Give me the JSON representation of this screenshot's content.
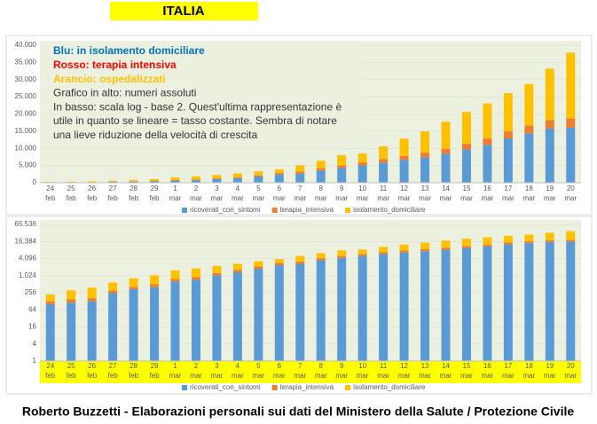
{
  "header": "ITALIA",
  "footer": "Roberto Buzzetti - Elaborazioni personali sui dati del Ministero della Salute / Protezione Civile",
  "chart_data": [
    {
      "type": "bar",
      "stacked": true,
      "log_scale": false,
      "grid": true,
      "annotations": [
        {
          "text": "Blu: in isolamento domiciliare",
          "color": "#0070c0",
          "bold": true
        },
        {
          "text": "Rosso: terapia intensiva",
          "color": "#ff0000",
          "bold": true
        },
        {
          "text": "Arancio: ospedalizzati",
          "color": "#ffc000",
          "bold": true
        },
        {
          "text": "Grafico in alto: numeri assoluti",
          "color": "#333333",
          "bold": false
        },
        {
          "text": "In basso: scala log - base 2. Quest'ultima rappresentazione è",
          "color": "#333333",
          "bold": false
        },
        {
          "text": "utile in quanto se lineare = tasso costante. Sembra di notare",
          "color": "#333333",
          "bold": false
        },
        {
          "text": "una lieve riduzione della velocità di crescita",
          "color": "#333333",
          "bold": false
        }
      ],
      "categories": [
        "24 feb",
        "25 feb",
        "26 feb",
        "27 feb",
        "28 feb",
        "29 feb",
        "1 mar",
        "2 mar",
        "3 mar",
        "4 mar",
        "5 mar",
        "6 mar",
        "7 mar",
        "8 mar",
        "9 mar",
        "10 mar",
        "11 mar",
        "12 mar",
        "13 mar",
        "14 mar",
        "15 mar",
        "16 mar",
        "17 mar",
        "18 mar",
        "19 mar",
        "20 mar"
      ],
      "series": [
        {
          "name": "ricoverati_con_sintomi",
          "color": "#5b9bd5",
          "values": [
            101,
            114,
            128,
            248,
            345,
            401,
            639,
            742,
            1034,
            1346,
            1790,
            2394,
            2651,
            3557,
            4316,
            5038,
            5838,
            6650,
            7426,
            8372,
            9663,
            11025,
            12894,
            14363,
            15757,
            16020
          ]
        },
        {
          "name": "terapia_intensiva",
          "color": "#ed7d31",
          "values": [
            26,
            35,
            36,
            56,
            64,
            105,
            140,
            166,
            229,
            295,
            351,
            462,
            567,
            650,
            733,
            877,
            1028,
            1153,
            1328,
            1518,
            1672,
            1851,
            2060,
            2257,
            2498,
            2655
          ]
        },
        {
          "name": "isolamento_domiciliare",
          "color": "#ffc000",
          "values": [
            94,
            162,
            221,
            284,
            412,
            543,
            798,
            927,
            1000,
            1065,
            1155,
            1060,
            1843,
            2180,
            2936,
            2599,
            3724,
            5036,
            6201,
            7860,
            9268,
            10197,
            11108,
            12090,
            14935,
            19185
          ]
        }
      ],
      "ylim": [
        0,
        40000
      ],
      "yticks": [
        0,
        {
          "value": 5000,
          "label": "5.000"
        },
        {
          "value": 10000,
          "label": "10.000"
        },
        {
          "value": 15000,
          "label": "15.000"
        },
        {
          "value": 20000,
          "label": "20.000"
        },
        {
          "value": 25000,
          "label": "25.000"
        },
        {
          "value": 30000,
          "label": "30.000"
        },
        {
          "value": 35000,
          "label": "35.000"
        },
        {
          "value": 40000,
          "label": "40.000"
        }
      ]
    },
    {
      "type": "bar",
      "stacked": true,
      "log_scale": true,
      "log_base": 2,
      "grid": true,
      "categories": [
        "24 feb",
        "25 feb",
        "26 feb",
        "27 feb",
        "28 feb",
        "29 feb",
        "1 mar",
        "2 mar",
        "3 mar",
        "4 mar",
        "5 mar",
        "6 mar",
        "7 mar",
        "8 mar",
        "9 mar",
        "10 mar",
        "11 mar",
        "12 mar",
        "13 mar",
        "14 mar",
        "15 mar",
        "16 mar",
        "17 mar",
        "18 mar",
        "19 mar",
        "20 mar"
      ],
      "series": [
        {
          "name": "ricoverati_con_sintomi",
          "color": "#5b9bd5",
          "values": [
            101,
            114,
            128,
            248,
            345,
            401,
            639,
            742,
            1034,
            1346,
            1790,
            2394,
            2651,
            3557,
            4316,
            5038,
            5838,
            6650,
            7426,
            8372,
            9663,
            11025,
            12894,
            14363,
            15757,
            16020
          ]
        },
        {
          "name": "terapia_intensiva",
          "color": "#ed7d31",
          "values": [
            26,
            35,
            36,
            56,
            64,
            105,
            140,
            166,
            229,
            295,
            351,
            462,
            567,
            650,
            733,
            877,
            1028,
            1153,
            1328,
            1518,
            1672,
            1851,
            2060,
            2257,
            2498,
            2655
          ]
        },
        {
          "name": "isolamento_domiciliare",
          "color": "#ffc000",
          "values": [
            94,
            162,
            221,
            284,
            412,
            543,
            798,
            927,
            1000,
            1065,
            1155,
            1060,
            1843,
            2180,
            2936,
            2599,
            3724,
            5036,
            6201,
            7860,
            9268,
            10197,
            11108,
            12090,
            14935,
            19185
          ]
        }
      ],
      "ylim": [
        1,
        65536
      ],
      "yticks": [
        1,
        4,
        16,
        64,
        256,
        {
          "value": 1024,
          "label": "1.024"
        },
        {
          "value": 4096,
          "label": "4.096"
        },
        {
          "value": 16384,
          "label": "16.384"
        },
        {
          "value": 65536,
          "label": "65.536"
        }
      ],
      "category_band_color": "#ffff00"
    }
  ]
}
